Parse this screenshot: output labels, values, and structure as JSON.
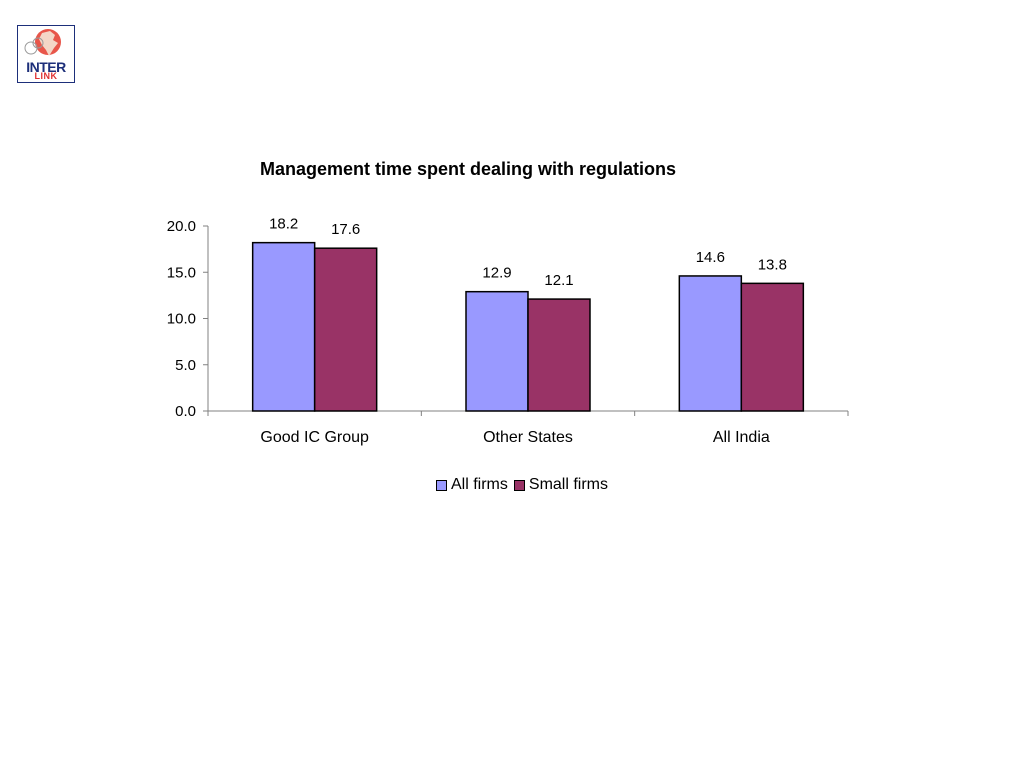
{
  "logo": {
    "brand_line1": "INTER",
    "brand_line2": "LINK",
    "icon": "india-map-globe-icon"
  },
  "colors": {
    "series_all_firms": "#9999ff",
    "series_small_firms": "#993366",
    "axis": "#808080",
    "bar_outline": "#000000"
  },
  "chart_data": {
    "type": "bar",
    "title": "Management time spent dealing with regulations",
    "xlabel": "",
    "ylabel": "",
    "categories": [
      "Good IC Group",
      "Other States",
      "All India"
    ],
    "series": [
      {
        "name": "All firms",
        "values": [
          18.2,
          12.9,
          14.6
        ],
        "labels": [
          "18.2",
          "12.9",
          "14.6"
        ]
      },
      {
        "name": "Small firms",
        "values": [
          17.6,
          12.1,
          13.8
        ],
        "labels": [
          "17.6",
          "12.1",
          "13.8"
        ]
      }
    ],
    "ylim": [
      0,
      20
    ],
    "yticks": [
      "0.0",
      "5.0",
      "10.0",
      "15.0",
      "20.0"
    ],
    "grid": false,
    "legend_position": "bottom"
  }
}
